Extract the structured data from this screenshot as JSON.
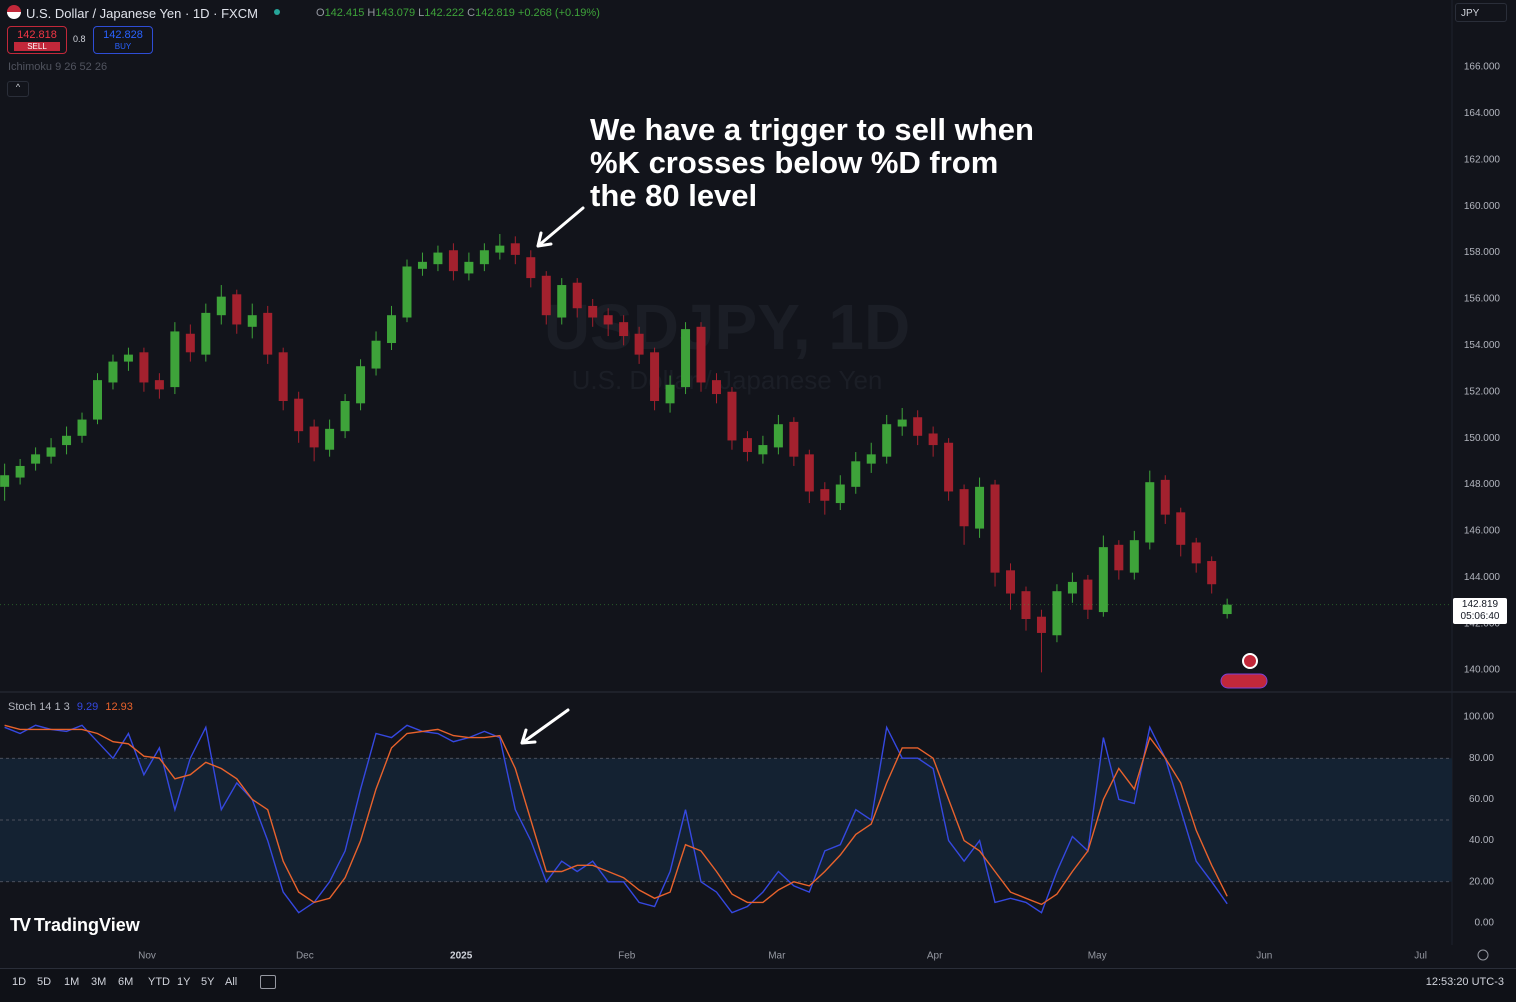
{
  "header": {
    "symbol": "U.S. Dollar / Japanese Yen · 1D · FXCM",
    "ohlc_labels": [
      "O",
      "H",
      "L",
      "C"
    ],
    "change": "+0.268 (+0.19%)",
    "sell_price": "142.818",
    "sell_label": "SELL",
    "spread": "0.8",
    "buy_price": "142.828",
    "buy_label": "BUY",
    "indicator": "Ichimoku 9 26 52 26",
    "currency": "JPY"
  },
  "watermark": {
    "title": "USDJPY, 1D",
    "subtitle": "U.S. Dollar / Japanese Yen"
  },
  "annotation": {
    "lines": [
      "We have a trigger to sell when",
      "%K crosses below %D from",
      "the 80 level"
    ]
  },
  "countdown": "05:06:40",
  "stoch_legend": "Stoch 14 1 3",
  "logo": "TradingView",
  "footer": {
    "ranges": [
      "1D",
      "5D",
      "1M",
      "3M",
      "6M",
      "YTD",
      "1Y",
      "5Y",
      "All"
    ],
    "clock": "12:53:20 UTC-3"
  },
  "chart_data": [
    {
      "type": "candlestick",
      "up_color": "#3ea33a",
      "down_color": "#a3212e",
      "xlim": [
        -0.3,
        93.4
      ],
      "ylim": [
        139.14,
        168.89
      ],
      "yticks": [
        {
          "value": 140,
          "label": "140.000"
        },
        {
          "value": 142,
          "label": "142.000"
        },
        {
          "value": 144,
          "label": "144.000"
        },
        {
          "value": 146,
          "label": "146.000"
        },
        {
          "value": 148,
          "label": "148.000"
        },
        {
          "value": 150,
          "label": "150.000"
        },
        {
          "value": 152,
          "label": "152.000"
        },
        {
          "value": 154,
          "label": "154.000"
        },
        {
          "value": 156,
          "label": "156.000"
        },
        {
          "value": 158,
          "label": "158.000"
        },
        {
          "value": 160,
          "label": "160.000"
        },
        {
          "value": 162,
          "label": "162.000"
        },
        {
          "value": 164,
          "label": "164.000"
        },
        {
          "value": 166,
          "label": "166.000"
        }
      ],
      "open": [
        147.9,
        148.3,
        148.9,
        149.2,
        149.7,
        150.1,
        150.8,
        152.4,
        153.3,
        153.7,
        152.5,
        152.2,
        154.5,
        153.6,
        155.3,
        156.2,
        154.8,
        155.4,
        153.7,
        151.7,
        150.5,
        149.5,
        150.3,
        151.5,
        153.0,
        154.1,
        155.2,
        157.3,
        157.5,
        158.1,
        157.1,
        157.5,
        158.0,
        158.4,
        157.8,
        157.0,
        155.2,
        156.7,
        155.7,
        155.3,
        155.0,
        154.5,
        153.7,
        151.5,
        152.2,
        154.8,
        152.5,
        152.0,
        150.0,
        149.3,
        149.6,
        150.7,
        149.3,
        147.8,
        147.2,
        147.9,
        148.9,
        149.2,
        150.5,
        150.9,
        150.2,
        149.8,
        147.8,
        146.1,
        148.0,
        144.3,
        143.4,
        142.3,
        141.5,
        143.3,
        143.9,
        142.5,
        145.4,
        144.2,
        145.5,
        148.2,
        146.8,
        145.5,
        144.7,
        142.415
      ],
      "high": [
        148.9,
        149.1,
        149.6,
        150.0,
        150.5,
        151.1,
        152.8,
        153.6,
        153.9,
        153.9,
        152.8,
        155.0,
        154.9,
        155.8,
        156.6,
        156.4,
        155.8,
        155.7,
        153.9,
        152.0,
        150.8,
        150.8,
        151.9,
        153.4,
        154.6,
        155.7,
        157.7,
        158.0,
        158.3,
        158.4,
        158.0,
        158.4,
        158.8,
        158.7,
        158.1,
        157.2,
        156.9,
        156.9,
        156.0,
        155.6,
        155.3,
        154.8,
        153.9,
        152.7,
        155.0,
        155.0,
        152.8,
        152.2,
        150.3,
        150.1,
        151.0,
        150.9,
        149.5,
        148.1,
        148.4,
        149.4,
        149.8,
        151.0,
        151.3,
        151.2,
        150.5,
        150.0,
        148.0,
        148.3,
        148.2,
        144.6,
        143.6,
        142.6,
        143.7,
        144.2,
        144.1,
        145.8,
        145.6,
        146.0,
        148.6,
        148.4,
        147.0,
        145.7,
        144.9,
        143.079
      ],
      "low": [
        147.3,
        148.0,
        148.6,
        148.9,
        149.3,
        149.8,
        150.6,
        152.1,
        152.9,
        152.0,
        151.7,
        151.9,
        153.3,
        153.3,
        154.9,
        154.5,
        154.3,
        153.2,
        151.2,
        149.8,
        149.0,
        149.2,
        150.0,
        151.2,
        152.7,
        153.8,
        155.0,
        157.0,
        157.2,
        156.8,
        156.8,
        157.2,
        157.7,
        157.5,
        156.5,
        154.9,
        154.9,
        155.2,
        154.8,
        154.4,
        154.0,
        153.2,
        151.2,
        151.1,
        151.9,
        152.0,
        151.5,
        149.5,
        149.0,
        148.9,
        149.3,
        148.8,
        147.2,
        146.7,
        146.9,
        147.6,
        148.5,
        148.9,
        150.1,
        149.7,
        149.2,
        147.3,
        145.4,
        145.7,
        143.6,
        142.6,
        141.7,
        139.9,
        141.2,
        142.9,
        142.2,
        142.3,
        143.9,
        143.9,
        145.2,
        146.3,
        144.9,
        144.2,
        143.3,
        142.222
      ],
      "close": [
        148.4,
        148.8,
        149.3,
        149.6,
        150.1,
        150.8,
        152.5,
        153.3,
        153.6,
        152.4,
        152.1,
        154.6,
        153.7,
        155.4,
        156.1,
        154.9,
        155.3,
        153.6,
        151.6,
        150.3,
        149.6,
        150.4,
        151.6,
        153.1,
        154.2,
        155.3,
        157.4,
        157.6,
        158.0,
        157.2,
        157.6,
        158.1,
        158.3,
        157.9,
        156.9,
        155.3,
        156.6,
        155.6,
        155.2,
        154.9,
        154.4,
        153.6,
        151.6,
        152.3,
        154.7,
        152.4,
        151.9,
        149.9,
        149.4,
        149.7,
        150.6,
        149.2,
        147.7,
        147.3,
        148.0,
        149.0,
        149.3,
        150.6,
        150.8,
        150.1,
        149.7,
        147.7,
        146.2,
        147.9,
        144.2,
        143.3,
        142.2,
        141.6,
        143.4,
        143.8,
        142.6,
        145.3,
        144.3,
        145.6,
        148.1,
        146.7,
        145.4,
        144.6,
        143.7,
        142.819
      ]
    },
    {
      "type": "line",
      "xlim": [
        -0.3,
        93.4
      ],
      "ylim": [
        -10.7,
        110.7
      ],
      "yticks": [
        {
          "value": 0,
          "label": "0.00"
        },
        {
          "value": 20,
          "label": "20.00"
        },
        {
          "value": 40,
          "label": "40.00"
        },
        {
          "value": 60,
          "label": "60.00"
        },
        {
          "value": 80,
          "label": "80.00"
        },
        {
          "value": 100,
          "label": "100.00"
        }
      ],
      "xticks": [
        {
          "value": 9.2,
          "label": "Nov"
        },
        {
          "value": 19.4,
          "label": "Dec"
        },
        {
          "value": 29.5,
          "label": "2025"
        },
        {
          "value": 40.2,
          "label": "Feb"
        },
        {
          "value": 49.9,
          "label": "Mar"
        },
        {
          "value": 60.1,
          "label": "Apr"
        },
        {
          "value": 70.6,
          "label": "May"
        },
        {
          "value": 81.4,
          "label": "Jun"
        },
        {
          "value": 91.5,
          "label": "Jul"
        }
      ],
      "hlines": [
        80,
        50,
        20
      ],
      "band_color": "#142232",
      "series": [
        {
          "color": "#3548e0",
          "values": [
            95,
            92,
            96,
            94,
            93,
            96,
            88,
            80,
            92,
            72,
            85,
            55,
            80,
            95,
            55,
            68,
            60,
            40,
            15,
            5,
            10,
            20,
            35,
            65,
            92,
            90,
            96,
            93,
            92,
            88,
            90,
            93,
            90,
            55,
            40,
            20,
            30,
            25,
            30,
            20,
            20,
            10,
            8,
            25,
            55,
            20,
            15,
            5,
            8,
            15,
            25,
            18,
            15,
            35,
            38,
            55,
            50,
            95,
            80,
            80,
            75,
            40,
            30,
            40,
            10,
            12,
            10,
            5,
            25,
            42,
            35,
            90,
            60,
            58,
            95,
            80,
            55,
            30,
            20,
            9.29
          ]
        },
        {
          "color": "#e8622c",
          "values": [
            96,
            94,
            94,
            94,
            94,
            94,
            92,
            88,
            87,
            81,
            80,
            70,
            72,
            78,
            75,
            70,
            60,
            55,
            30,
            15,
            10,
            12,
            22,
            40,
            65,
            85,
            92,
            93,
            94,
            91,
            90,
            90,
            91,
            75,
            50,
            25,
            25,
            28,
            28,
            25,
            22,
            16,
            12,
            15,
            38,
            35,
            25,
            14,
            10,
            10,
            16,
            20,
            18,
            25,
            33,
            43,
            48,
            68,
            85,
            85,
            80,
            60,
            40,
            35,
            25,
            15,
            12,
            9,
            14,
            25,
            35,
            60,
            75,
            65,
            90,
            80,
            68,
            45,
            28,
            12.93
          ]
        }
      ]
    }
  ]
}
